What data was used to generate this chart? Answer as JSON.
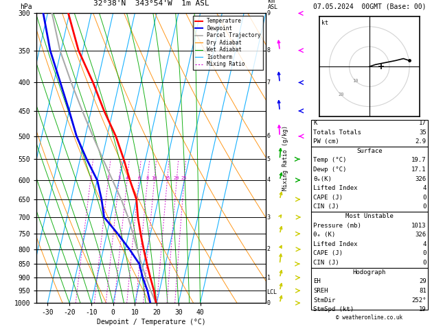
{
  "title_left": "32°38'N  343°54'W  1m ASL",
  "title_right": "07.05.2024  00GMT (Base: 00)",
  "xlabel": "Dewpoint / Temperature (°C)",
  "xlim": [
    -35,
    40
  ],
  "pmin": 300,
  "pmax": 1000,
  "pressure_levels": [
    300,
    350,
    400,
    450,
    500,
    550,
    600,
    650,
    700,
    750,
    800,
    850,
    900,
    950,
    1000
  ],
  "xticks": [
    -30,
    -20,
    -10,
    0,
    10,
    20,
    30,
    40
  ],
  "temp_color": "#ff0000",
  "dewpoint_color": "#0000ee",
  "parcel_color": "#aaaaaa",
  "dry_adiabat_color": "#ff8c00",
  "wet_adiabat_color": "#00aa00",
  "isotherm_color": "#00aaff",
  "mixing_ratio_color": "#cc00cc",
  "skew": 30,
  "temp_profile_p": [
    1000,
    950,
    900,
    850,
    800,
    750,
    700,
    650,
    600,
    550,
    500,
    450,
    400,
    350,
    300
  ],
  "temp_profile_T": [
    19.7,
    17.5,
    14.5,
    11.5,
    8.5,
    5.5,
    2.5,
    0.0,
    -5.0,
    -10.0,
    -16.0,
    -24.0,
    -32.0,
    -42.0,
    -50.5
  ],
  "dewp_profile_p": [
    1000,
    950,
    900,
    850,
    800,
    750,
    700,
    650,
    600,
    550,
    500,
    450,
    400,
    350,
    300
  ],
  "dewp_profile_T": [
    17.1,
    14.5,
    11.0,
    8.0,
    2.0,
    -5.0,
    -13.0,
    -16.0,
    -20.0,
    -27.0,
    -34.0,
    -40.0,
    -47.0,
    -55.0,
    -62.0
  ],
  "parcel_profile_p": [
    1000,
    950,
    900,
    850,
    800,
    750,
    700,
    650,
    600,
    550,
    500,
    450,
    400,
    350,
    300
  ],
  "parcel_profile_T": [
    19.7,
    16.0,
    12.5,
    9.0,
    5.5,
    2.0,
    -2.0,
    -7.0,
    -13.0,
    -19.5,
    -26.5,
    -34.0,
    -42.0,
    -50.5,
    -58.0
  ],
  "lcl_p": 955,
  "km_labels": {
    "300": 9,
    "350": 8,
    "400": 7,
    "500": 6,
    "550": 5,
    "600": 4,
    "700": 3,
    "800": 2,
    "900": 1,
    "950": "LCL",
    "1000": 0
  },
  "mixing_ratios": [
    1,
    2,
    3,
    4,
    6,
    8,
    10,
    15,
    20,
    25
  ],
  "stats": {
    "K": 17,
    "Totals_Totals": 35,
    "PW_cm": 2.9,
    "Surface_Temp": 19.7,
    "Surface_Dewp": 17.1,
    "Surface_theta_e": 326,
    "Surface_Lifted_Index": 4,
    "Surface_CAPE": 0,
    "Surface_CIN": 0,
    "MU_Pressure": 1013,
    "MU_theta_e": 326,
    "MU_Lifted_Index": 4,
    "MU_CAPE": 0,
    "MU_CIN": 0,
    "EH": 29,
    "SREH": 81,
    "StmDir": 252,
    "StmSpd": 19
  },
  "wind_barbs": [
    {
      "p": 300,
      "color": "#ff00ff",
      "u": -8,
      "v": 12
    },
    {
      "p": 350,
      "color": "#ff00ff",
      "u": -5,
      "v": 10
    },
    {
      "p": 400,
      "color": "#0000ee",
      "u": -3,
      "v": 7
    },
    {
      "p": 450,
      "color": "#0000ee",
      "u": -2,
      "v": 5
    },
    {
      "p": 500,
      "color": "#ff00ff",
      "u": -1,
      "v": 4
    },
    {
      "p": 550,
      "color": "#00aa00",
      "u": 1,
      "v": 3
    },
    {
      "p": 600,
      "color": "#00aa00",
      "u": 2,
      "v": 2
    },
    {
      "p": 650,
      "color": "#cccc00",
      "u": 2,
      "v": 2
    },
    {
      "p": 700,
      "color": "#cccc00",
      "u": 3,
      "v": 1
    },
    {
      "p": 750,
      "color": "#cccc00",
      "u": 2,
      "v": 2
    },
    {
      "p": 800,
      "color": "#cccc00",
      "u": 2,
      "v": 1
    },
    {
      "p": 850,
      "color": "#cccc00",
      "u": 1,
      "v": 2
    },
    {
      "p": 900,
      "color": "#cccc00",
      "u": 1,
      "v": 1
    },
    {
      "p": 950,
      "color": "#cccc00",
      "u": 1,
      "v": 1
    },
    {
      "p": 1000,
      "color": "#cccc00",
      "u": 1,
      "v": 1
    }
  ]
}
